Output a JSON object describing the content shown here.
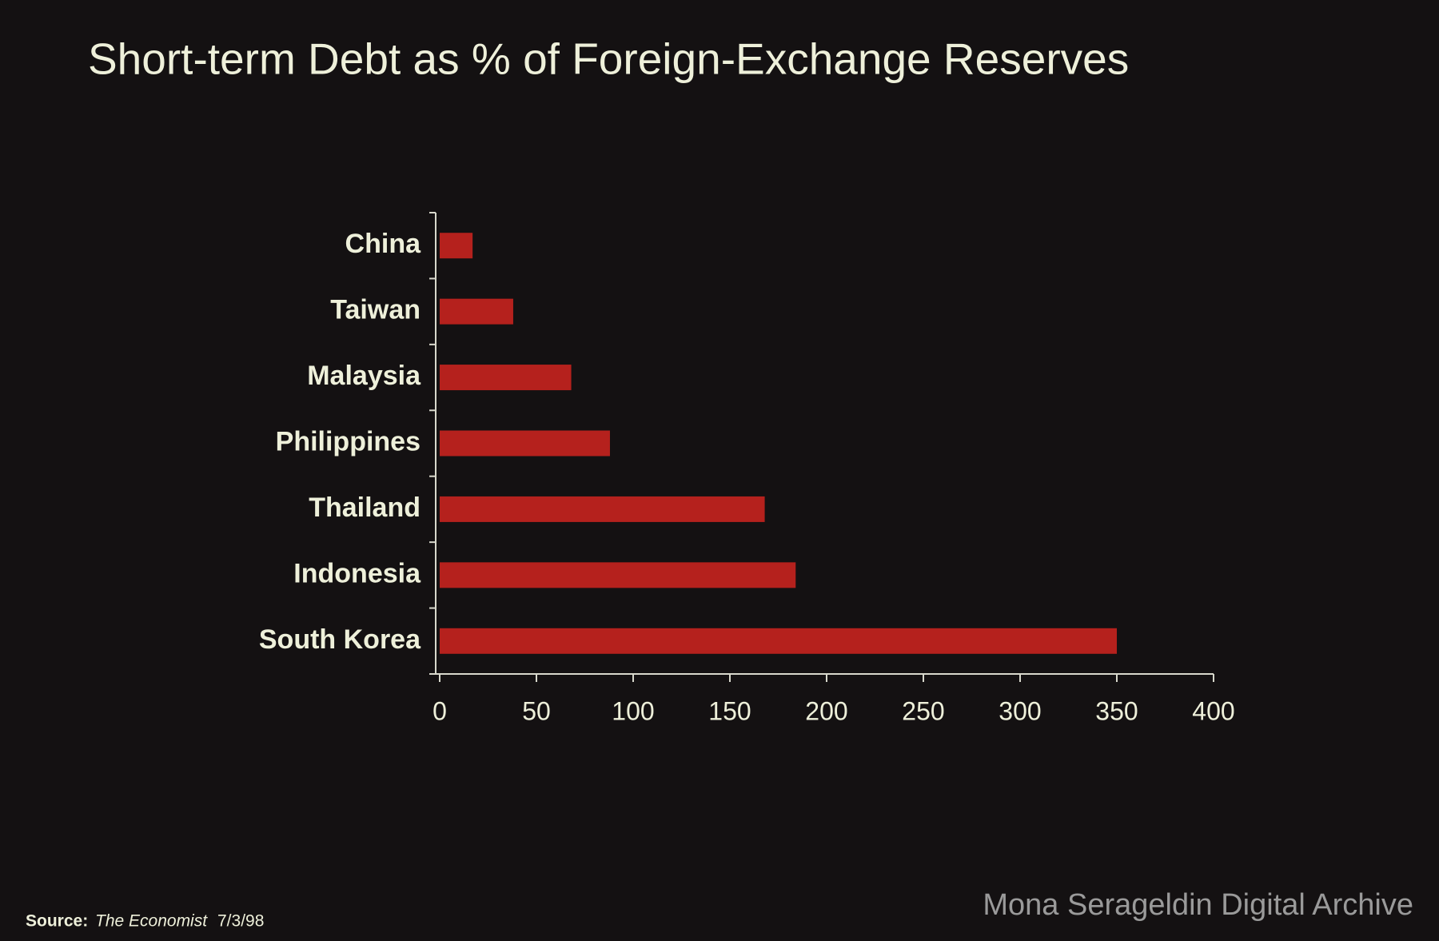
{
  "chart_data": {
    "type": "bar",
    "orientation": "horizontal",
    "title": "Short-term Debt as % of Foreign-Exchange Reserves",
    "categories": [
      "China",
      "Taiwan",
      "Malaysia",
      "Philippines",
      "Thailand",
      "Indonesia",
      "South Korea"
    ],
    "values": [
      17,
      38,
      68,
      88,
      168,
      184,
      350
    ],
    "color": "#b5211d",
    "xlim": [
      0,
      400
    ],
    "xticks": [
      0,
      50,
      100,
      150,
      200,
      250,
      300,
      350,
      400
    ],
    "grid": false
  },
  "source": {
    "label": "Source:",
    "publication": "The Economist",
    "date": "7/3/98"
  },
  "watermark": "Mona Serageldin Digital Archive"
}
